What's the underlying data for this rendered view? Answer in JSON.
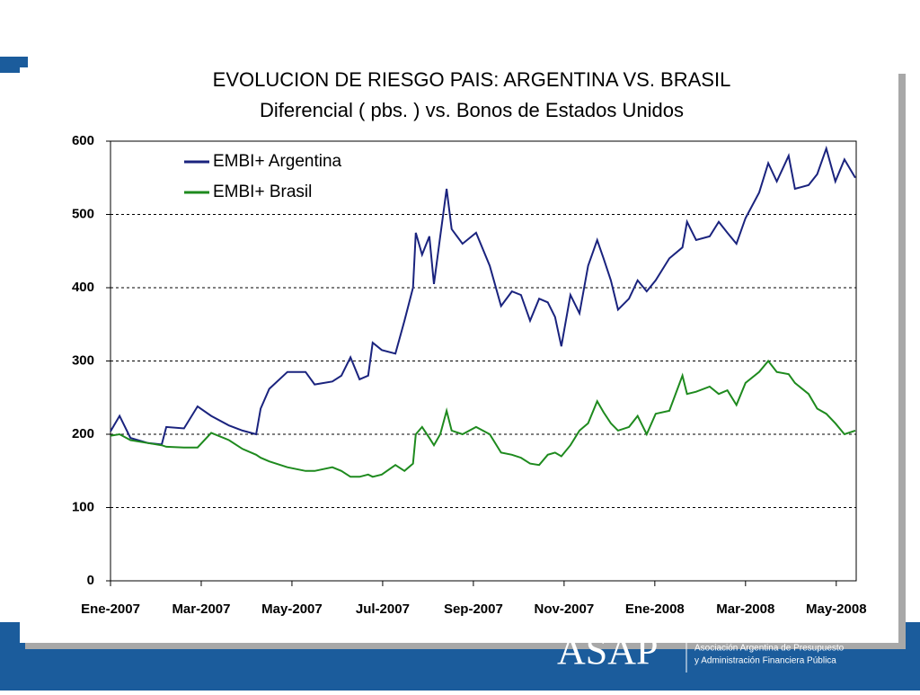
{
  "chart_data": {
    "type": "line",
    "title": "EVOLUCION DE RIESGO PAIS: ARGENTINA VS. BRASIL",
    "subtitle": "Diferencial ( pbs. ) vs. Bonos de Estados Unidos",
    "x": [
      0,
      0.2,
      0.44,
      0.83,
      1.13,
      1.23,
      1.62,
      1.92,
      2.22,
      2.61,
      2.91,
      3.21,
      3.31,
      3.5,
      3.9,
      4.3,
      4.5,
      4.89,
      5.09,
      5.29,
      5.49,
      5.68,
      5.78,
      5.98,
      6.28,
      6.48,
      6.67,
      6.73,
      6.87,
      7.03,
      7.13,
      7.27,
      7.41,
      7.52,
      7.76,
      8.06,
      8.36,
      8.61,
      8.85,
      9.05,
      9.25,
      9.45,
      9.64,
      9.8,
      9.94,
      10.14,
      10.34,
      10.53,
      10.73,
      10.87,
      11.03,
      11.19,
      11.43,
      11.62,
      11.82,
      12.02,
      12.32,
      12.61,
      12.71,
      12.91,
      13.21,
      13.41,
      13.6,
      13.8,
      14,
      14.3,
      14.5,
      14.69,
      14.95,
      15.09,
      15.39,
      15.58,
      15.78,
      15.98,
      16.18,
      16.42
    ],
    "series": [
      {
        "name": "EMBI+ Argentina",
        "color": "#1a237e",
        "values": [
          204,
          225,
          195,
          188,
          186,
          210,
          208,
          238,
          225,
          212,
          205,
          200,
          235,
          262,
          285,
          285,
          268,
          272,
          280,
          305,
          275,
          280,
          325,
          315,
          310,
          355,
          400,
          475,
          445,
          470,
          405,
          470,
          535,
          480,
          460,
          475,
          430,
          375,
          395,
          390,
          355,
          385,
          380,
          360,
          320,
          390,
          365,
          430,
          465,
          440,
          410,
          370,
          385,
          410,
          395,
          410,
          440,
          455,
          490,
          465,
          470,
          490,
          475,
          460,
          495,
          530,
          570,
          545,
          580,
          535,
          540,
          555,
          590,
          545,
          575,
          550
        ]
      },
      {
        "name": "EMBI+ Brasil",
        "color": "#1e8a1e",
        "values": [
          198,
          200,
          192,
          188,
          185,
          183,
          182,
          182,
          202,
          192,
          180,
          172,
          168,
          163,
          155,
          150,
          150,
          155,
          150,
          142,
          142,
          145,
          142,
          145,
          158,
          150,
          160,
          200,
          210,
          195,
          185,
          200,
          232,
          205,
          200,
          210,
          200,
          175,
          172,
          168,
          160,
          158,
          172,
          175,
          170,
          185,
          205,
          215,
          245,
          230,
          215,
          205,
          210,
          225,
          200,
          228,
          232,
          280,
          255,
          258,
          265,
          255,
          260,
          240,
          270,
          285,
          300,
          285,
          282,
          270,
          255,
          235,
          228,
          215,
          200,
          205
        ]
      }
    ],
    "xlim": [
      0,
      16.44
    ],
    "xticks": [
      {
        "value": 0,
        "label": "Ene-2007"
      },
      {
        "value": 2,
        "label": "Mar-2007"
      },
      {
        "value": 4,
        "label": "May-2007"
      },
      {
        "value": 6,
        "label": "Jul-2007"
      },
      {
        "value": 8,
        "label": "Sep-2007"
      },
      {
        "value": 10,
        "label": "Nov-2007"
      },
      {
        "value": 12,
        "label": "Ene-2008"
      },
      {
        "value": 14,
        "label": "Mar-2008"
      },
      {
        "value": 16,
        "label": "May-2008"
      }
    ],
    "ylim": [
      0,
      600
    ],
    "yticks": [
      0,
      100,
      200,
      300,
      400,
      500,
      600
    ],
    "grid": true,
    "legend": "upper left"
  },
  "footer": {
    "logo": "ASAP",
    "org_line1": "Asociación Argentina de Presupuesto",
    "org_line2": "y Administración Financiera Pública"
  }
}
